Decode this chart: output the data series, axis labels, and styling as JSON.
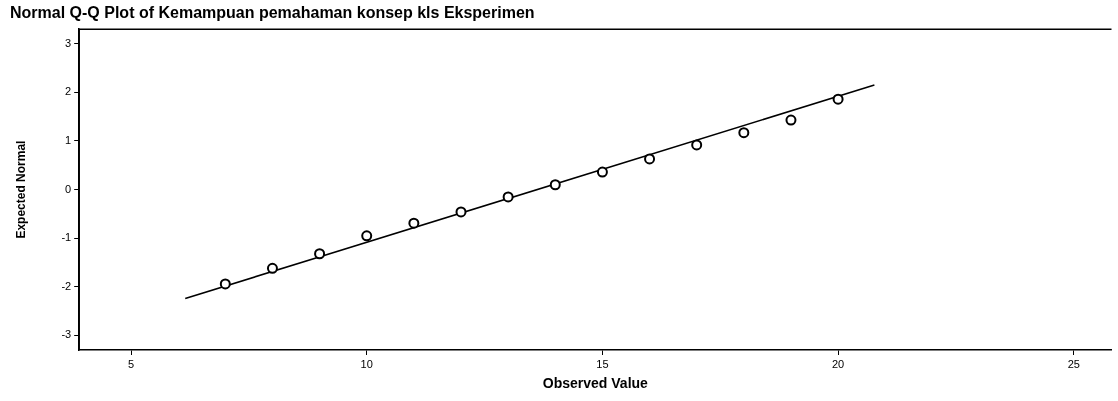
{
  "chart_data": {
    "type": "scatter",
    "title": "Normal Q-Q Plot of Kemampuan pemahaman konsep kls Eksperimen",
    "xlabel": "Observed Value",
    "ylabel": "Expected Normal",
    "xlim": [
      3.9,
      25.8
    ],
    "xticks": [
      5,
      10,
      15,
      20,
      25
    ],
    "ylim": [
      -3.3,
      3.3
    ],
    "yticks": [
      -3,
      -2,
      -1,
      0,
      1,
      2,
      3
    ],
    "grid": false,
    "legend": false,
    "series": [
      {
        "marker": "circle",
        "color": "#000000",
        "x": [
          7,
          8,
          9,
          10,
          11,
          12,
          13,
          14,
          15,
          16,
          17,
          18,
          19,
          20
        ],
        "values": [
          -1.94,
          -1.62,
          -1.32,
          -0.95,
          -0.69,
          -0.46,
          -0.15,
          0.1,
          0.36,
          0.63,
          0.92,
          1.17,
          1.43,
          1.86
        ]
      },
      {
        "type": "line",
        "marker": "none",
        "line_style": "solid",
        "color": "#000000",
        "x": [
          6.15,
          20.77
        ],
        "values": [
          -2.24,
          2.15
        ]
      }
    ]
  }
}
